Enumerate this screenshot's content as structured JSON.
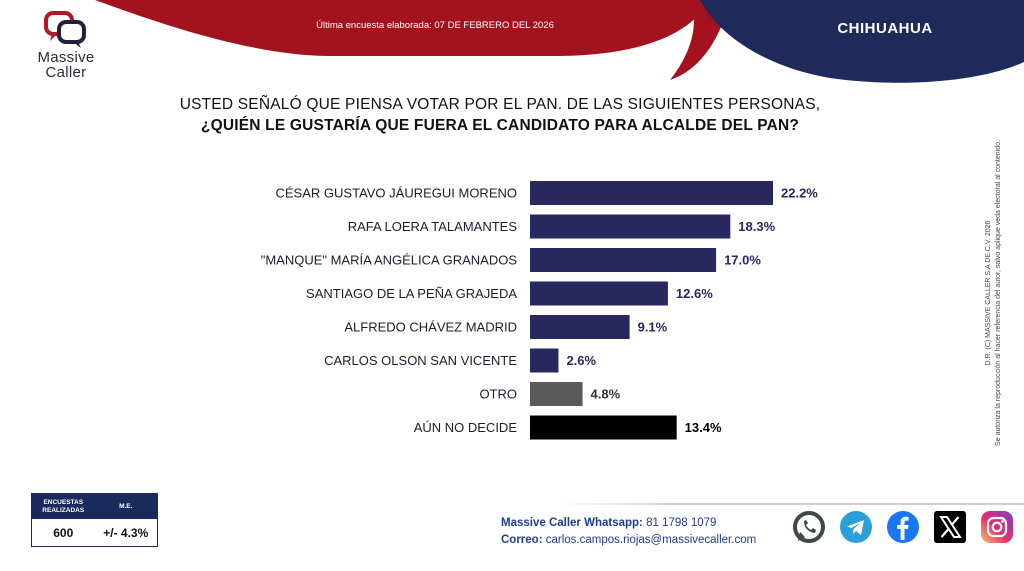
{
  "brand": {
    "name_line1": "Massive",
    "name_line2": "Caller",
    "logo_color": "#b0182b",
    "logo_dark": "#24203a"
  },
  "header": {
    "date_text": "Última encuesta elaborada: 07 DE FEBRERO DEL 2026",
    "region": "CHIHUAHUA",
    "red_color": "#a3131f",
    "navy_color": "#1e2a5a"
  },
  "question": {
    "line1": "USTED SEÑALÓ QUE PIENSA VOTAR POR EL PAN. DE LAS SIGUIENTES PERSONAS,",
    "line2": "¿QUIÉN LE GUSTARÍA QUE FUERA EL CANDIDATO PARA ALCALDE DEL PAN?"
  },
  "chart_data": {
    "type": "bar",
    "orientation": "horizontal",
    "title": "",
    "xlabel": "",
    "ylabel": "",
    "xlim": [
      0,
      22.2
    ],
    "grid": false,
    "legend": "none",
    "value_suffix": "%",
    "categories": [
      "CÉSAR GUSTAVO JÁUREGUI MORENO",
      "RAFA LOERA TALAMANTES",
      "\"MANQUE\" MARÍA ANGÉLICA GRANADOS",
      "SANTIAGO DE LA PEÑA GRAJEDA",
      "ALFREDO CHÁVEZ MADRID",
      "CARLOS OLSON SAN VICENTE",
      "OTRO",
      "AÚN NO DECIDE"
    ],
    "values": [
      22.2,
      18.3,
      17.0,
      12.6,
      9.1,
      2.6,
      4.8,
      13.4
    ],
    "value_labels": [
      "22.2%",
      "18.3%",
      "17.0%",
      "12.6%",
      "9.1%",
      "2.6%",
      "4.8%",
      "13.4%"
    ],
    "colors": [
      "#28285e",
      "#28285e",
      "#28285e",
      "#28285e",
      "#28285e",
      "#28285e",
      "#5a5a5a",
      "#000000"
    ],
    "label_colors": [
      "#28285e",
      "#28285e",
      "#28285e",
      "#28285e",
      "#28285e",
      "#28285e",
      "#333333",
      "#000000"
    ]
  },
  "copyright": {
    "line1": "D.R. (C) MASSIVE CALLER S.A DE C.V. 2026",
    "line2": "Se autoriza la reproducción al hacer referencia del autor, salvo aplique veda electoral al contenido."
  },
  "stats": {
    "col1_header": "ENCUESTAS REALIZADAS",
    "col2_header": "M.E.",
    "col1_value": "600",
    "col2_value": "+/- 4.3%"
  },
  "contact": {
    "whatsapp_label": "Massive Caller Whatsapp:",
    "whatsapp_number": "81 1798 1079",
    "email_label": "Correo:",
    "email": "carlos.campos.riojas@massivecaller.com"
  },
  "social": [
    {
      "icon": "whatsapp-icon",
      "color": "#3f4a45"
    },
    {
      "icon": "telegram-icon",
      "color": "#2d9fd8"
    },
    {
      "icon": "facebook-icon",
      "color": "#1877f2"
    },
    {
      "icon": "x-icon",
      "color": "#000000"
    },
    {
      "icon": "instagram-icon",
      "color": "#d6249f"
    }
  ]
}
